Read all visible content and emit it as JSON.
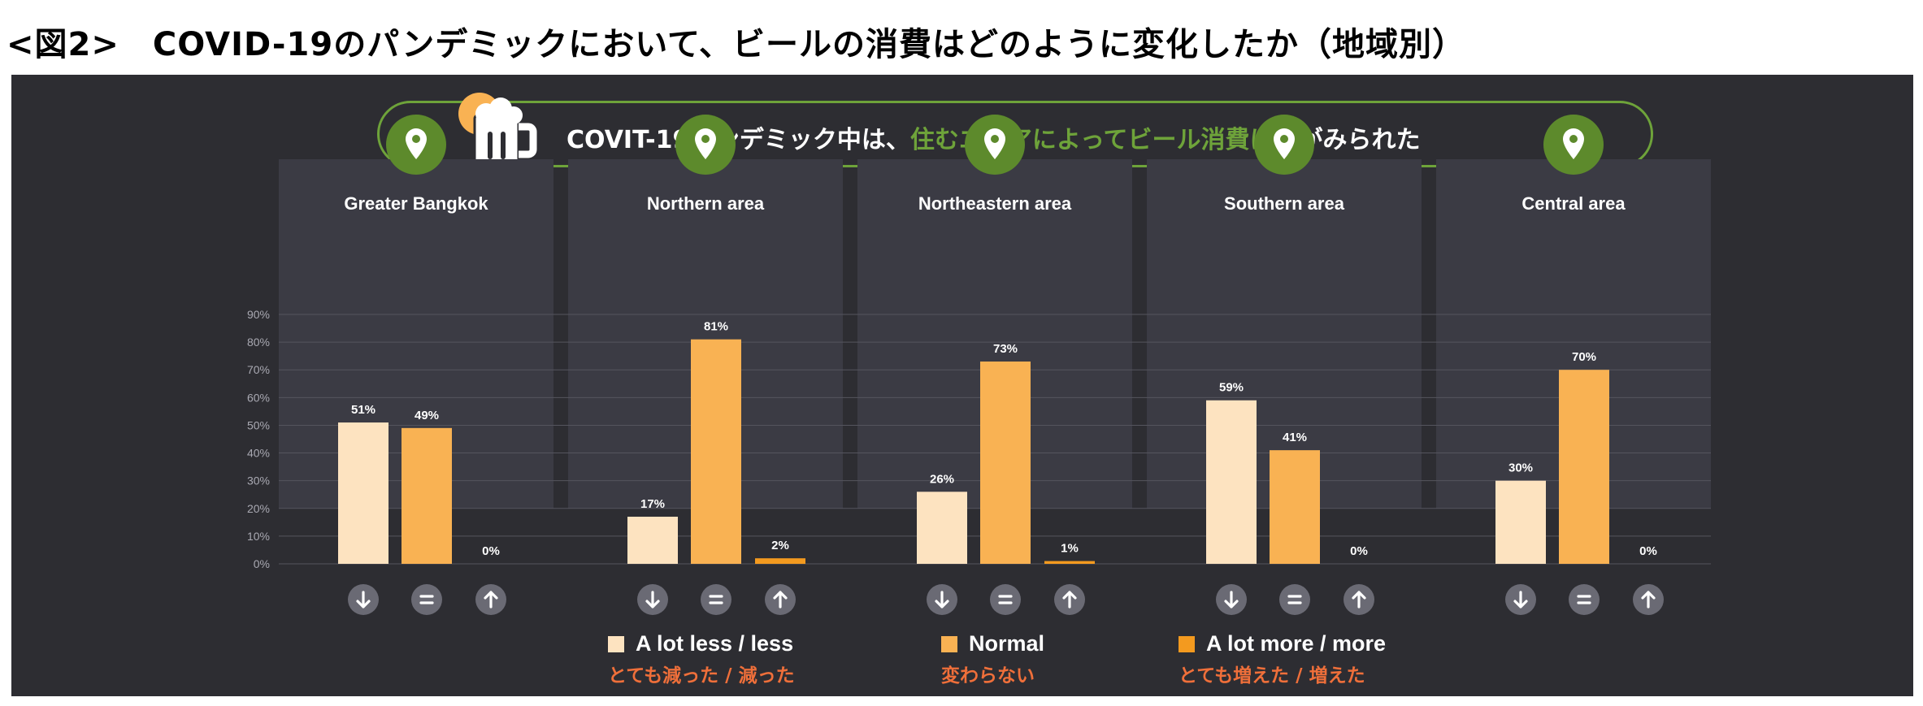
{
  "figure_title": "<図2>　COVID-19のパンデミックにおいて、ビールの消費はどのように変化したか（地域別）",
  "banner": {
    "text_before": "COVIT-19パンデミック中は、",
    "text_highlight": "住むエリアによってビール消費に差",
    "text_after": "がみられた",
    "icon": "beer-mug-icon"
  },
  "colors": {
    "background": "#2d2d32",
    "panel_box": "#3b3b44",
    "accent_green": "#6ea33a",
    "less": "#fde3c0",
    "normal": "#f9b253",
    "more": "#f39a1f",
    "legend_jp": "#ef6f3a"
  },
  "icons": {
    "area": "location-pin-icon",
    "down": "down-arrow-icon",
    "equal": "equals-icon",
    "up": "up-arrow-icon"
  },
  "chart_data": {
    "type": "bar",
    "ylim": [
      0,
      90
    ],
    "y_ticks": [
      "0%",
      "10%",
      "20%",
      "30%",
      "40%",
      "50%",
      "60%",
      "70%",
      "80%",
      "90%"
    ],
    "grid": true,
    "categories": [
      "Greater Bangkok",
      "Northern area",
      "Northeastern area",
      "Southern area",
      "Central area"
    ],
    "series": [
      {
        "name": "A lot less / less",
        "name_jp": "とても減った / 減った",
        "color": "#fde3c0",
        "values": [
          51,
          17,
          26,
          59,
          30
        ]
      },
      {
        "name": "Normal",
        "name_jp": "変わらない",
        "color": "#f9b253",
        "values": [
          49,
          81,
          73,
          41,
          70
        ]
      },
      {
        "name": "A lot more / more",
        "name_jp": "とても増えた / 増えた",
        "color": "#f39a1f",
        "values": [
          0,
          2,
          1,
          0,
          0
        ]
      }
    ],
    "value_labels": [
      [
        "51%",
        "49%",
        "0%"
      ],
      [
        "17%",
        "81%",
        "2%"
      ],
      [
        "26%",
        "73%",
        "1%"
      ],
      [
        "59%",
        "41%",
        "0%"
      ],
      [
        "30%",
        "70%",
        "0%"
      ]
    ],
    "legend_position": "bottom"
  }
}
